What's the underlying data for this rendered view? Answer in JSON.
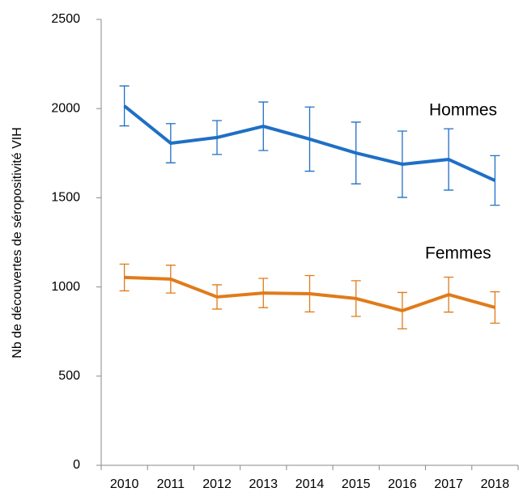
{
  "chart_data": {
    "type": "line",
    "y_label": "Nb de découvertes de séropositivité VIH",
    "categories": [
      "2010",
      "2011",
      "2012",
      "2013",
      "2014",
      "2015",
      "2016",
      "2017",
      "2018"
    ],
    "series": [
      {
        "name": "Hommes",
        "color": "#1f6fc5",
        "values": [
          2015,
          1806,
          1838,
          1901,
          1829,
          1751,
          1688,
          1715,
          1597
        ],
        "errors": [
          112,
          110,
          95,
          136,
          180,
          173,
          186,
          172,
          139
        ]
      },
      {
        "name": "Femmes",
        "color": "#e07b1a",
        "values": [
          1053,
          1044,
          944,
          966,
          962,
          935,
          867,
          957,
          885
        ],
        "errors": [
          75,
          78,
          68,
          82,
          102,
          100,
          102,
          98,
          88
        ]
      }
    ],
    "ylim": [
      0,
      2500
    ],
    "yticks": [
      0,
      500,
      1000,
      1500,
      2000,
      2500
    ],
    "grid": false
  }
}
